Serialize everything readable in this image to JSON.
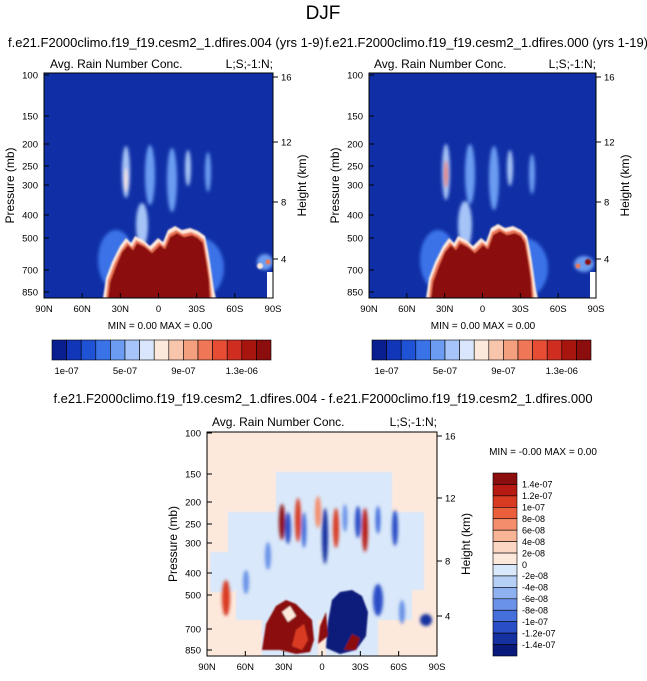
{
  "page_title": "DJF",
  "chart_data": [
    {
      "type": "heatmap",
      "title": "f.e21.F2000climo.f19_f19.cesm2_1.dfires.004 (yrs 1-9)",
      "subtitle_left": "Avg. Rain Number Conc.",
      "subtitle_right": "L;S;-1:N;",
      "xlabel": "",
      "ylabel": "Pressure (mb)",
      "ylabel_right": "Height (km)",
      "x_ticks": [
        "90N",
        "60N",
        "30N",
        "0",
        "30S",
        "60S",
        "90S"
      ],
      "y_ticks": [
        "100",
        "150",
        "200",
        "250",
        "300",
        "400",
        "500",
        "700",
        "850"
      ],
      "y_ticks_right": [
        "16",
        "12",
        "8",
        "4"
      ],
      "stats": "MIN =  0.00   MAX =  0.00",
      "colorbar_labels": [
        "1e-07",
        "5e-07",
        "9e-07",
        "1.3e-06"
      ]
    },
    {
      "type": "heatmap",
      "title": "f.e21.F2000climo.f19_f19.cesm2_1.dfires.000 (yrs 1-19)",
      "subtitle_left": "Avg. Rain Number Conc.",
      "subtitle_right": "L;S;-1:N;",
      "xlabel": "",
      "ylabel": "Pressure (mb)",
      "ylabel_right": "Height (km)",
      "x_ticks": [
        "90N",
        "60N",
        "30N",
        "0",
        "30S",
        "60S",
        "90S"
      ],
      "y_ticks": [
        "100",
        "150",
        "200",
        "250",
        "300",
        "400",
        "500",
        "700",
        "850"
      ],
      "y_ticks_right": [
        "16",
        "12",
        "8",
        "4"
      ],
      "stats": "MIN =  0.00   MAX =  0.00",
      "colorbar_labels": [
        "1e-07",
        "5e-07",
        "9e-07",
        "1.3e-06"
      ]
    },
    {
      "type": "heatmap",
      "title": "f.e21.F2000climo.f19_f19.cesm2_1.dfires.004 - f.e21.F2000climo.f19_f19.cesm2_1.dfires.000",
      "subtitle_left": "Avg. Rain Number Conc.",
      "subtitle_right": "L;S;-1:N;",
      "xlabel": "",
      "ylabel": "Pressure (mb)",
      "ylabel_right": "Height (km)",
      "x_ticks": [
        "90N",
        "60N",
        "30N",
        "0",
        "30S",
        "60S",
        "90S"
      ],
      "y_ticks": [
        "100",
        "150",
        "200",
        "250",
        "300",
        "400",
        "500",
        "700",
        "850"
      ],
      "y_ticks_right": [
        "16",
        "12",
        "8",
        "4"
      ],
      "stats": "MIN = -0.00   MAX =  0.00",
      "colorbar_labels": [
        "1.4e-07",
        "1.2e-07",
        "1e-07",
        "8e-08",
        "6e-08",
        "4e-08",
        "2e-08",
        "0",
        "-2e-08",
        "-4e-08",
        "-6e-08",
        "-8e-08",
        "-1e-07",
        "-1.2e-07",
        "-1.4e-07"
      ]
    }
  ],
  "colors": {
    "abs_scale": [
      "#0a1f8f",
      "#1236b8",
      "#1f52d4",
      "#3a72e8",
      "#6b9cf2",
      "#a6c4f7",
      "#d9e6fb",
      "#fde8dc",
      "#f8c5ad",
      "#f4a07f",
      "#ef7656",
      "#e74d35",
      "#cf2d1f",
      "#a8150f",
      "#8b0d0d"
    ],
    "diff_scale": [
      "#8b0d0d",
      "#b71a12",
      "#d93a22",
      "#ec5f3d",
      "#f48d6c",
      "#f8b497",
      "#fbd6c2",
      "#fde8dc",
      "#d9e8fa",
      "#b6cff5",
      "#8eb2ef",
      "#6a93e7",
      "#4570dc",
      "#2a4ec6",
      "#15309f",
      "#0a1a7a"
    ]
  }
}
